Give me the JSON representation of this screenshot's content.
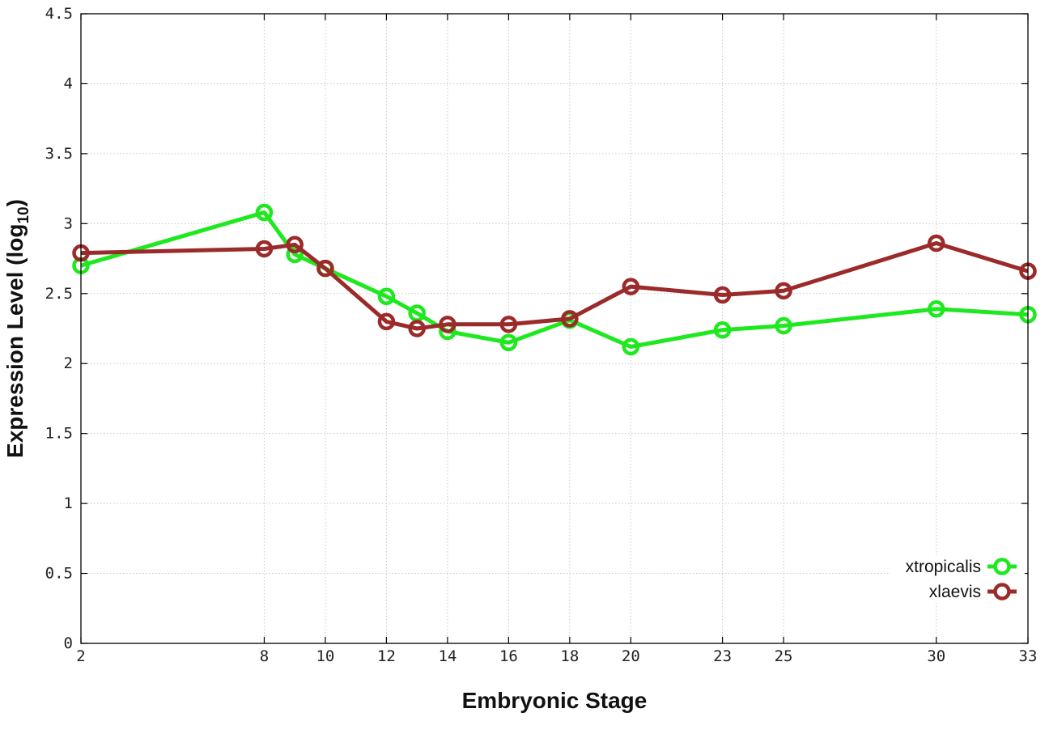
{
  "chart_data": {
    "type": "line",
    "xlabel": "Embryonic Stage",
    "ylabel": "Expression Level (log",
    "ylabel_subscript": "10",
    "ylabel_close": ")",
    "ylim": [
      0,
      4.5
    ],
    "xlim": [
      2,
      33
    ],
    "grid": true,
    "legend_position": "bottom-right",
    "y_ticks": [
      "0",
      "0.5",
      "1",
      "1.5",
      "2",
      "2.5",
      "3",
      "3.5",
      "4",
      "4.5"
    ],
    "y_tick_values": [
      0,
      0.5,
      1,
      1.5,
      2,
      2.5,
      3,
      3.5,
      4,
      4.5
    ],
    "x_ticks": [
      "2",
      "8",
      "10",
      "12",
      "14",
      "16",
      "18",
      "20",
      "23",
      "25",
      "30",
      "33"
    ],
    "x_tick_values": [
      2,
      8,
      10,
      12,
      14,
      16,
      18,
      20,
      23,
      25,
      30,
      33
    ],
    "series": [
      {
        "name": "xtropicalis",
        "color": "#1ee81e",
        "x": [
          2,
          8,
          9,
          10,
          12,
          13,
          14,
          16,
          18,
          20,
          23,
          25,
          30,
          33
        ],
        "values": [
          2.7,
          3.08,
          2.78,
          2.68,
          2.48,
          2.36,
          2.23,
          2.15,
          2.31,
          2.12,
          2.24,
          2.27,
          2.39,
          2.35
        ]
      },
      {
        "name": "xlaevis",
        "color": "#9b2a2a",
        "x": [
          2,
          8,
          9,
          10,
          12,
          13,
          14,
          16,
          18,
          20,
          23,
          25,
          30,
          33
        ],
        "values": [
          2.79,
          2.82,
          2.85,
          2.68,
          2.3,
          2.25,
          2.28,
          2.28,
          2.32,
          2.55,
          2.49,
          2.52,
          2.86,
          2.66
        ]
      }
    ]
  }
}
